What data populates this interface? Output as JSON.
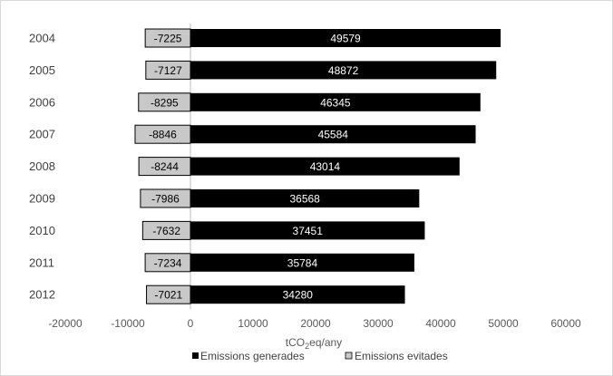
{
  "chart_data": {
    "type": "bar",
    "orientation": "horizontal",
    "stacked": "diverging",
    "categories": [
      "2004",
      "2005",
      "2006",
      "2007",
      "2008",
      "2009",
      "2010",
      "2011",
      "2012"
    ],
    "series": [
      {
        "name": "Emissions generades",
        "color": "#000000",
        "values": [
          49579,
          48872,
          46345,
          45584,
          43014,
          36568,
          37451,
          35784,
          34280
        ]
      },
      {
        "name": "Emissions evitades",
        "color": "#c8c8c8",
        "values": [
          -7225,
          -7127,
          -8295,
          -8846,
          -8244,
          -7986,
          -7632,
          -7234,
          -7021
        ]
      }
    ],
    "xlabel_main": "tCO",
    "xlabel_sub": "2",
    "xlabel_tail": "eq/any",
    "xlim": [
      -20000,
      60000
    ],
    "xticks": [
      -20000,
      -10000,
      0,
      10000,
      20000,
      30000,
      40000,
      50000,
      60000
    ],
    "grid": false,
    "legend_position": "bottom"
  }
}
